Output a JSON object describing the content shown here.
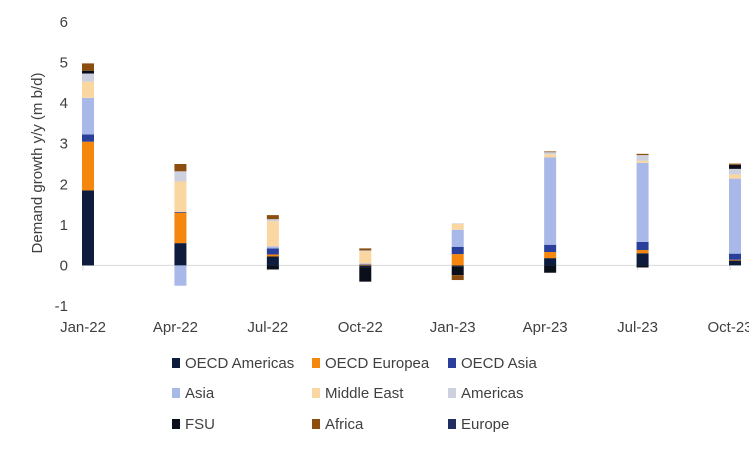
{
  "chart_data": {
    "type": "bar",
    "stacked": true,
    "ylabel": "Demand growth y/y (m b/d)",
    "ylim": [
      -1,
      6
    ],
    "yticks": [
      -1,
      0,
      1,
      2,
      3,
      4,
      5,
      6
    ],
    "grid": false,
    "legend_position": "bottom",
    "x_tick_labels": [
      "Jan-22",
      "Apr-22",
      "Jul-22",
      "Oct-22",
      "Jan-23",
      "Apr-23",
      "Jul-23",
      "Oct-23"
    ],
    "categories": [
      "Jan-22",
      "Apr-22",
      "Jul-22",
      "Oct-22",
      "Jan-23",
      "Apr-23",
      "Jul-23",
      "Oct-23"
    ],
    "series": [
      {
        "name": "OECD Americas",
        "color": "#0d1c3d",
        "values": [
          1.85,
          0.55,
          0.22,
          -0.05,
          -0.02,
          0.18,
          0.3,
          0.12
        ]
      },
      {
        "name": "OECD Europea",
        "color": "#f5870f",
        "values": [
          1.2,
          0.75,
          0.05,
          0.02,
          0.28,
          0.15,
          0.08,
          0.02
        ]
      },
      {
        "name": "OECD Asia",
        "color": "#2a3f9b",
        "values": [
          0.18,
          0.02,
          0.15,
          0.01,
          0.18,
          0.18,
          0.2,
          0.15
        ]
      },
      {
        "name": "Asia",
        "color": "#a8b8e8",
        "values": [
          0.9,
          -0.5,
          0.05,
          0.02,
          0.42,
          2.15,
          1.95,
          1.85
        ]
      },
      {
        "name": "Middle East",
        "color": "#fad7a0",
        "values": [
          0.4,
          0.75,
          0.62,
          0.3,
          0.15,
          0.08,
          0.05,
          0.1
        ]
      },
      {
        "name": "Americas",
        "color": "#cdd0de",
        "values": [
          0.2,
          0.25,
          0.05,
          0.02,
          0.01,
          0.05,
          0.14,
          0.14
        ]
      },
      {
        "name": "FSU",
        "color": "#0a0f1a",
        "values": [
          0.07,
          0.0,
          -0.1,
          -0.35,
          -0.22,
          -0.18,
          -0.05,
          0.1
        ]
      },
      {
        "name": "Africa",
        "color": "#8b4e10",
        "values": [
          0.18,
          0.18,
          0.1,
          0.05,
          -0.12,
          0.02,
          0.03,
          0.03
        ]
      },
      {
        "name": "Europe",
        "color": "#1f3060",
        "values": [
          0.0,
          0.0,
          0.0,
          0.0,
          0.0,
          0.0,
          0.0,
          0.0
        ]
      }
    ]
  }
}
